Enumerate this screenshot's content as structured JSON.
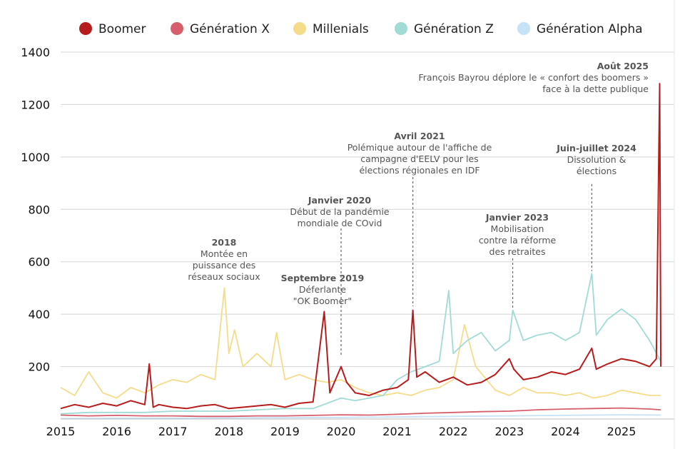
{
  "chart_data": {
    "type": "line",
    "title": "",
    "xlabel": "",
    "ylabel": "",
    "ylim": [
      0,
      1400
    ],
    "xlim": [
      2015,
      2025.75
    ],
    "grid": true,
    "legend_position": "top",
    "y_ticks": [
      "1400",
      "1200",
      "1000",
      "800",
      "600",
      "400",
      "200"
    ],
    "x_ticks": [
      "2015",
      "2016",
      "2017",
      "2018",
      "2019",
      "2020",
      "2021",
      "2022",
      "2023",
      "2024",
      "2025"
    ],
    "series": [
      {
        "name": "Boomer",
        "color": "#b71c1c",
        "points": [
          [
            2015.0,
            40
          ],
          [
            2015.25,
            55
          ],
          [
            2015.5,
            45
          ],
          [
            2015.75,
            60
          ],
          [
            2016.0,
            50
          ],
          [
            2016.25,
            70
          ],
          [
            2016.5,
            55
          ],
          [
            2016.58,
            210
          ],
          [
            2016.65,
            45
          ],
          [
            2016.75,
            55
          ],
          [
            2017.0,
            45
          ],
          [
            2017.25,
            40
          ],
          [
            2017.5,
            50
          ],
          [
            2017.75,
            55
          ],
          [
            2018.0,
            40
          ],
          [
            2018.25,
            45
          ],
          [
            2018.5,
            50
          ],
          [
            2018.75,
            55
          ],
          [
            2019.0,
            45
          ],
          [
            2019.25,
            60
          ],
          [
            2019.5,
            65
          ],
          [
            2019.7,
            410
          ],
          [
            2019.8,
            100
          ],
          [
            2020.0,
            200
          ],
          [
            2020.1,
            140
          ],
          [
            2020.25,
            100
          ],
          [
            2020.5,
            90
          ],
          [
            2020.75,
            110
          ],
          [
            2021.0,
            120
          ],
          [
            2021.2,
            150
          ],
          [
            2021.28,
            415
          ],
          [
            2021.35,
            160
          ],
          [
            2021.5,
            180
          ],
          [
            2021.75,
            140
          ],
          [
            2022.0,
            160
          ],
          [
            2022.25,
            130
          ],
          [
            2022.5,
            140
          ],
          [
            2022.75,
            170
          ],
          [
            2023.0,
            230
          ],
          [
            2023.08,
            190
          ],
          [
            2023.25,
            150
          ],
          [
            2023.5,
            160
          ],
          [
            2023.75,
            180
          ],
          [
            2024.0,
            170
          ],
          [
            2024.25,
            190
          ],
          [
            2024.47,
            270
          ],
          [
            2024.55,
            190
          ],
          [
            2024.75,
            210
          ],
          [
            2025.0,
            230
          ],
          [
            2025.25,
            220
          ],
          [
            2025.5,
            200
          ],
          [
            2025.62,
            230
          ],
          [
            2025.68,
            1280
          ],
          [
            2025.7,
            200
          ]
        ]
      },
      {
        "name": "Génération X",
        "color": "#d65f6b",
        "points": [
          [
            2015.0,
            15
          ],
          [
            2015.5,
            12
          ],
          [
            2016.0,
            14
          ],
          [
            2016.5,
            12
          ],
          [
            2017.0,
            12
          ],
          [
            2017.5,
            10
          ],
          [
            2018.0,
            10
          ],
          [
            2018.5,
            12
          ],
          [
            2019.0,
            12
          ],
          [
            2019.5,
            14
          ],
          [
            2020.0,
            16
          ],
          [
            2020.5,
            15
          ],
          [
            2021.0,
            18
          ],
          [
            2021.5,
            22
          ],
          [
            2022.0,
            25
          ],
          [
            2022.5,
            28
          ],
          [
            2023.0,
            30
          ],
          [
            2023.5,
            35
          ],
          [
            2024.0,
            38
          ],
          [
            2024.5,
            40
          ],
          [
            2025.0,
            42
          ],
          [
            2025.5,
            38
          ],
          [
            2025.7,
            35
          ]
        ]
      },
      {
        "name": "Millenials",
        "color": "#f5dc8a",
        "points": [
          [
            2015.0,
            120
          ],
          [
            2015.25,
            90
          ],
          [
            2015.5,
            180
          ],
          [
            2015.75,
            100
          ],
          [
            2016.0,
            80
          ],
          [
            2016.25,
            120
          ],
          [
            2016.5,
            100
          ],
          [
            2016.75,
            130
          ],
          [
            2017.0,
            150
          ],
          [
            2017.25,
            140
          ],
          [
            2017.5,
            170
          ],
          [
            2017.75,
            150
          ],
          [
            2017.92,
            500
          ],
          [
            2018.0,
            250
          ],
          [
            2018.1,
            340
          ],
          [
            2018.25,
            200
          ],
          [
            2018.5,
            250
          ],
          [
            2018.75,
            200
          ],
          [
            2018.85,
            330
          ],
          [
            2019.0,
            150
          ],
          [
            2019.25,
            170
          ],
          [
            2019.5,
            150
          ],
          [
            2019.75,
            140
          ],
          [
            2020.0,
            150
          ],
          [
            2020.25,
            120
          ],
          [
            2020.5,
            100
          ],
          [
            2020.75,
            90
          ],
          [
            2021.0,
            100
          ],
          [
            2021.25,
            90
          ],
          [
            2021.5,
            110
          ],
          [
            2021.75,
            120
          ],
          [
            2022.0,
            150
          ],
          [
            2022.2,
            360
          ],
          [
            2022.4,
            200
          ],
          [
            2022.75,
            110
          ],
          [
            2023.0,
            90
          ],
          [
            2023.25,
            120
          ],
          [
            2023.5,
            100
          ],
          [
            2023.75,
            100
          ],
          [
            2024.0,
            90
          ],
          [
            2024.25,
            100
          ],
          [
            2024.5,
            80
          ],
          [
            2024.75,
            90
          ],
          [
            2025.0,
            110
          ],
          [
            2025.25,
            100
          ],
          [
            2025.5,
            90
          ],
          [
            2025.7,
            90
          ]
        ]
      },
      {
        "name": "Génération Z",
        "color": "#a1dbd6",
        "points": [
          [
            2015.0,
            20
          ],
          [
            2015.5,
            25
          ],
          [
            2016.0,
            25
          ],
          [
            2016.5,
            25
          ],
          [
            2017.0,
            30
          ],
          [
            2017.5,
            30
          ],
          [
            2018.0,
            30
          ],
          [
            2018.5,
            35
          ],
          [
            2019.0,
            40
          ],
          [
            2019.5,
            40
          ],
          [
            2019.75,
            60
          ],
          [
            2020.0,
            80
          ],
          [
            2020.25,
            70
          ],
          [
            2020.5,
            80
          ],
          [
            2020.75,
            90
          ],
          [
            2021.0,
            150
          ],
          [
            2021.25,
            180
          ],
          [
            2021.5,
            200
          ],
          [
            2021.75,
            220
          ],
          [
            2021.92,
            490
          ],
          [
            2022.0,
            250
          ],
          [
            2022.25,
            300
          ],
          [
            2022.5,
            330
          ],
          [
            2022.75,
            260
          ],
          [
            2023.0,
            300
          ],
          [
            2023.06,
            415
          ],
          [
            2023.25,
            300
          ],
          [
            2023.5,
            320
          ],
          [
            2023.75,
            330
          ],
          [
            2024.0,
            300
          ],
          [
            2024.25,
            330
          ],
          [
            2024.47,
            555
          ],
          [
            2024.55,
            320
          ],
          [
            2024.75,
            380
          ],
          [
            2025.0,
            420
          ],
          [
            2025.25,
            380
          ],
          [
            2025.5,
            300
          ],
          [
            2025.7,
            220
          ]
        ]
      },
      {
        "name": "Génération Alpha",
        "color": "#c6e2f7",
        "points": [
          [
            2015.0,
            2
          ],
          [
            2016.0,
            3
          ],
          [
            2017.0,
            3
          ],
          [
            2018.0,
            4
          ],
          [
            2019.0,
            5
          ],
          [
            2020.0,
            6
          ],
          [
            2021.0,
            8
          ],
          [
            2022.0,
            10
          ],
          [
            2023.0,
            12
          ],
          [
            2024.0,
            14
          ],
          [
            2025.0,
            16
          ],
          [
            2025.7,
            15
          ]
        ]
      }
    ],
    "annotations": [
      {
        "title": "2018",
        "lines": [
          "Montée en",
          "puissance des",
          "réseaux sociaux"
        ],
        "x": 2017.92,
        "y": 500,
        "leader": false
      },
      {
        "title": "Septembre 2019",
        "lines": [
          "Déferlante",
          "\"OK Boomer\""
        ],
        "x": 2019.7,
        "y": 410,
        "leader": false
      },
      {
        "title": "Janvier 2020",
        "lines": [
          "Début de la pandémie",
          "mondiale de COvid"
        ],
        "x": 2020.0,
        "y": 240,
        "leader": true
      },
      {
        "title": "Avril 2021",
        "lines": [
          "Polémique autour de l'affiche de",
          "campagne d'EELV pour les",
          "élections régionales en IDF"
        ],
        "x": 2021.28,
        "y": 430,
        "leader": true
      },
      {
        "title": "Janvier 2023",
        "lines": [
          "Mobilisation",
          "contre la réforme",
          "des retraites"
        ],
        "x": 2023.06,
        "y": 425,
        "leader": true
      },
      {
        "title": "Juin-juillet 2024",
        "lines": [
          "Dissolution &",
          "élections"
        ],
        "x": 2024.47,
        "y": 565,
        "leader": true
      },
      {
        "title": "Août 2025",
        "lines": [
          "François Bayrou déplore le « confort des boomers »",
          "face à la dette publique"
        ],
        "x": 2025.68,
        "y": 1280,
        "leader": false
      }
    ]
  }
}
